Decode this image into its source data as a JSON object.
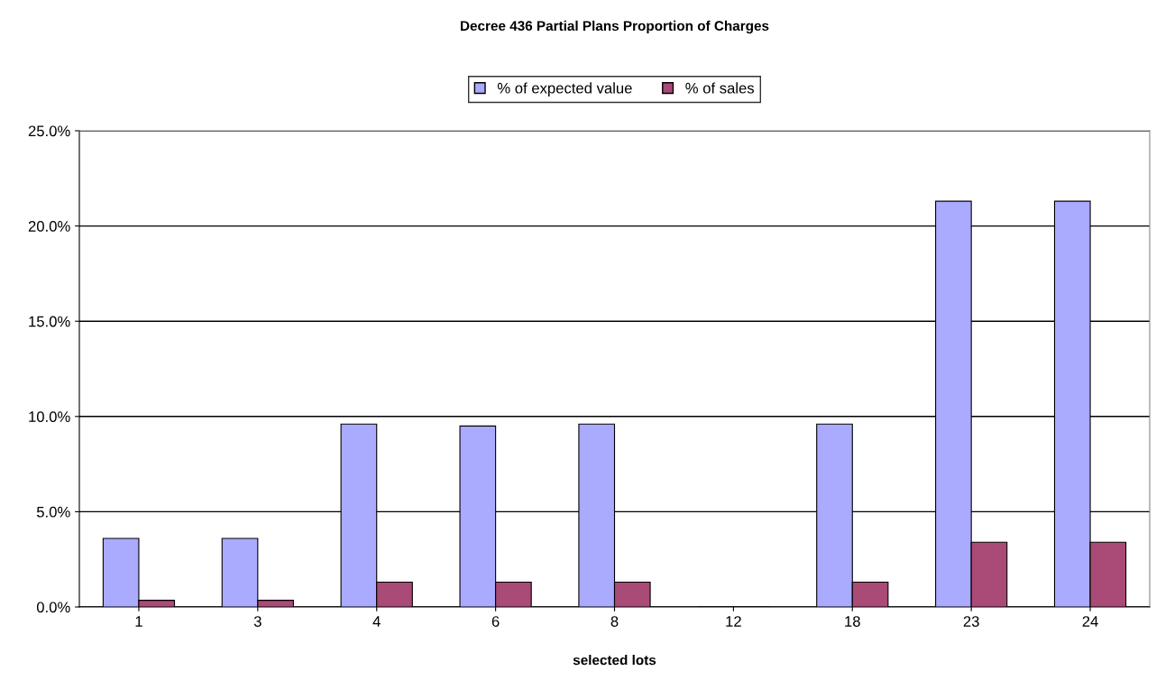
{
  "chart_data": {
    "type": "bar",
    "title": "Decree 436 Partial Plans Proportion of Charges",
    "xlabel": "selected lots",
    "categories": [
      "1",
      "3",
      "4",
      "6",
      "8",
      "12",
      "18",
      "23",
      "24"
    ],
    "series": [
      {
        "name": "% of expected value",
        "color": "#aaaaff",
        "values": [
          3.6,
          3.6,
          9.6,
          9.5,
          9.6,
          0,
          9.6,
          21.3,
          21.3
        ]
      },
      {
        "name": "% of sales",
        "color": "#aa4a77",
        "values": [
          0.35,
          0.35,
          1.3,
          1.3,
          1.3,
          0,
          1.3,
          3.4,
          3.4
        ]
      }
    ],
    "ylim": [
      0,
      25
    ],
    "yticks": [
      {
        "value": 0,
        "label": "0.0%"
      },
      {
        "value": 5,
        "label": "5.0%"
      },
      {
        "value": 10,
        "label": "10.0%"
      },
      {
        "value": 15,
        "label": "15.0%"
      },
      {
        "value": 20,
        "label": "20.0%"
      },
      {
        "value": 25,
        "label": "25.0%"
      }
    ],
    "grid": "y",
    "legend": "top"
  }
}
